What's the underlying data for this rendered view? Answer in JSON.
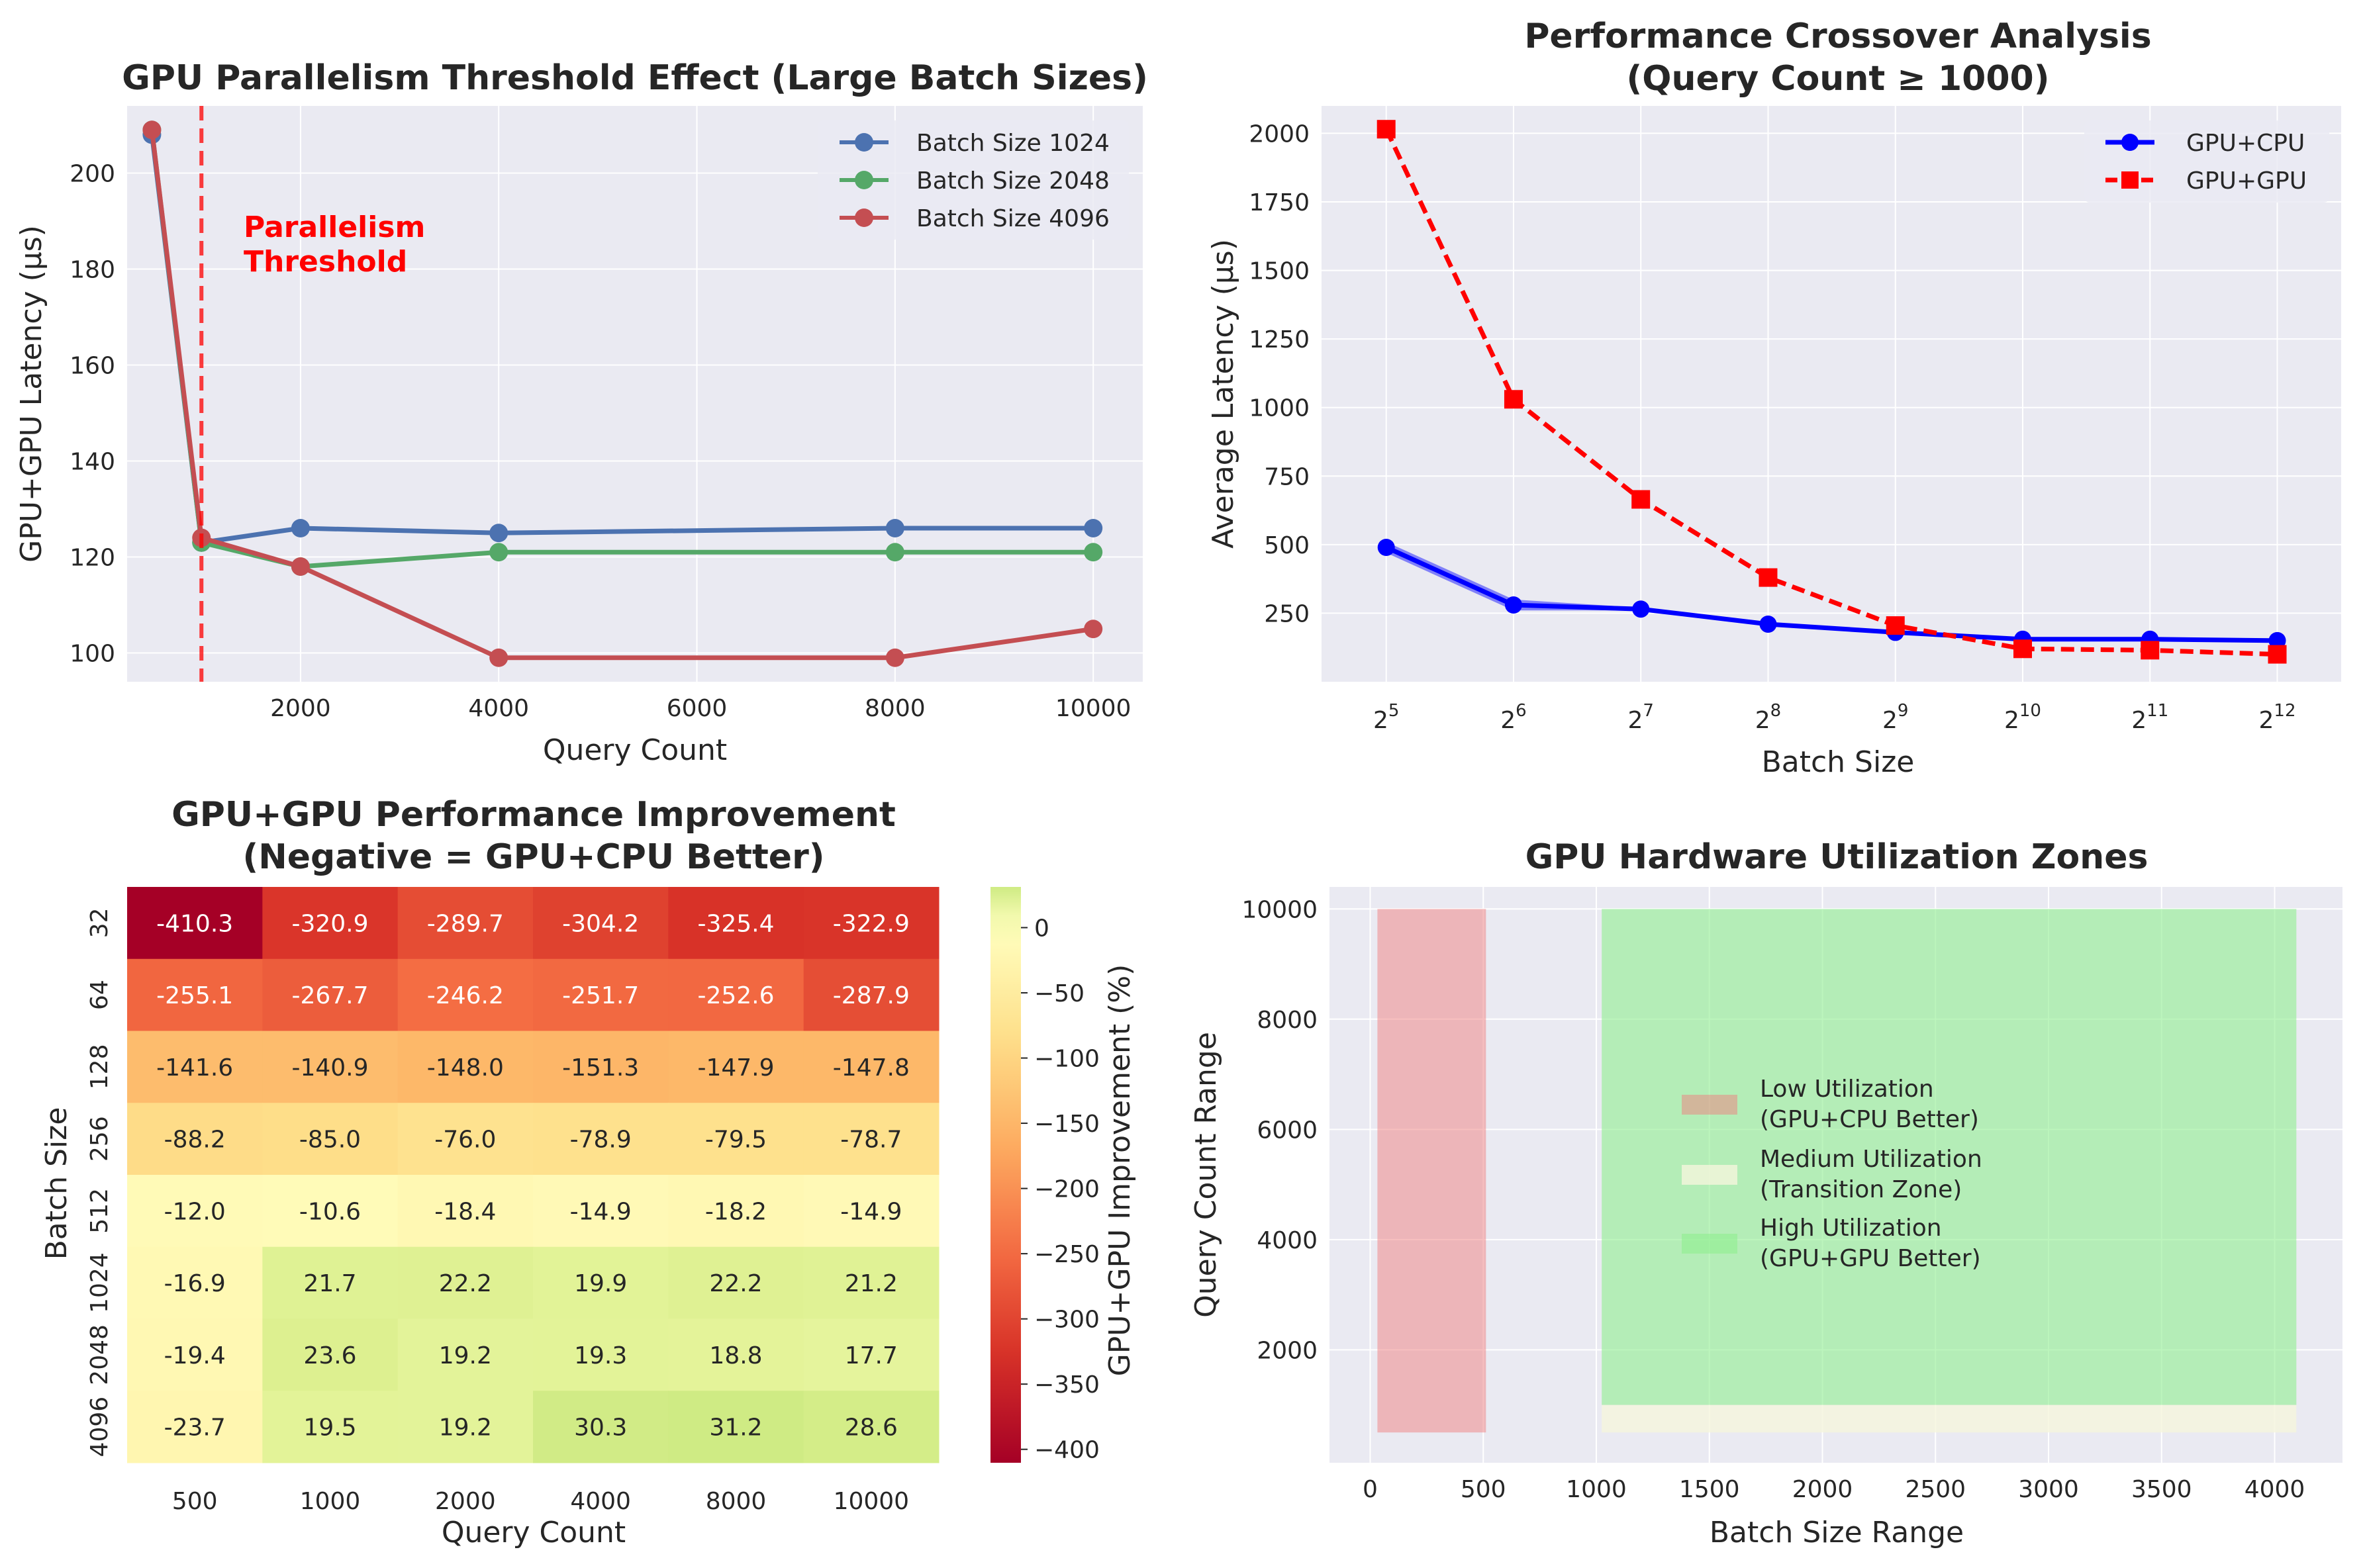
{
  "colors": {
    "panel_bg": "#EAEAF2",
    "grid": "#ffffff",
    "series_1024": "#4C72B0",
    "series_2048": "#55A868",
    "series_4096": "#C44E52",
    "gpu_cpu": "#0000FF",
    "gpu_gpu": "#FF0000",
    "zone_low": "#F08080",
    "zone_medium": "#F5F5DC",
    "zone_high": "#90EE90"
  },
  "chart_data": [
    {
      "type": "line",
      "title": "GPU Parallelism Threshold Effect (Large Batch Sizes)",
      "xlabel": "Query Count",
      "ylabel": "GPU+GPU Latency (μs)",
      "xlim": [
        250,
        10500
      ],
      "ylim": [
        94,
        214
      ],
      "xticks": [
        2000,
        4000,
        6000,
        8000,
        10000
      ],
      "yticks": [
        100,
        120,
        140,
        160,
        180,
        200
      ],
      "legend": "upper right",
      "annotation": {
        "x": 1000,
        "text_lines": [
          "Parallelism",
          "Threshold"
        ]
      },
      "series": [
        {
          "name": "Batch Size 1024",
          "x": [
            500,
            1000,
            2000,
            4000,
            8000,
            10000
          ],
          "values": [
            208,
            123,
            126,
            125,
            126,
            126
          ]
        },
        {
          "name": "Batch Size 2048",
          "x": [
            500,
            1000,
            2000,
            4000,
            8000,
            10000
          ],
          "values": [
            209,
            123,
            118,
            121,
            121,
            121
          ]
        },
        {
          "name": "Batch Size 4096",
          "x": [
            500,
            1000,
            2000,
            4000,
            8000,
            10000
          ],
          "values": [
            209,
            124,
            118,
            99,
            99,
            105
          ]
        }
      ]
    },
    {
      "type": "line",
      "title": "Performance Crossover Analysis",
      "subtitle": "(Query Count ≥ 1000)",
      "xlabel": "Batch Size",
      "ylabel": "Average Latency (μs)",
      "xscale": "log2",
      "xlim": [
        22.5,
        5800
      ],
      "ylim": [
        0,
        2100
      ],
      "xticks": [
        32,
        64,
        128,
        256,
        512,
        1024,
        2048,
        4096
      ],
      "xtick_exponents": [
        "5",
        "6",
        "7",
        "8",
        "9",
        "10",
        "11",
        "12"
      ],
      "ytick_base": "2",
      "yticks": [
        250,
        500,
        750,
        1000,
        1250,
        1500,
        1750,
        2000
      ],
      "legend": "upper right",
      "series": [
        {
          "name": "GPU+CPU",
          "x": [
            32,
            64,
            128,
            256,
            512,
            1024,
            2048,
            4096
          ],
          "values": [
            490,
            280,
            265,
            210,
            180,
            155,
            155,
            150
          ],
          "band_low": [
            470,
            260,
            260,
            205,
            175,
            150,
            150,
            145
          ],
          "band_high": [
            510,
            300,
            270,
            215,
            185,
            160,
            160,
            155
          ]
        },
        {
          "name": "GPU+GPU",
          "x": [
            32,
            64,
            128,
            256,
            512,
            1024,
            2048,
            4096
          ],
          "values": [
            2015,
            1030,
            665,
            380,
            205,
            120,
            115,
            100
          ]
        }
      ]
    },
    {
      "type": "heatmap",
      "title": "GPU+GPU Performance Improvement",
      "subtitle": "(Negative = GPU+CPU Better)",
      "xlabel": "Query Count",
      "ylabel": "Batch Size",
      "colorbar_label": "GPU+GPU Improvement (%)",
      "colormap": "RdYlGn",
      "vmin": -410.3,
      "vmax": 31.2,
      "colorbar_ticks": [
        0,
        -50,
        -100,
        -150,
        -200,
        -250,
        -300,
        -350,
        -400
      ],
      "colorbar_tick_labels": [
        "0",
        "−50",
        "−100",
        "−150",
        "−200",
        "−250",
        "−300",
        "−350",
        "−400"
      ],
      "x": [
        "500",
        "1000",
        "2000",
        "4000",
        "8000",
        "10000"
      ],
      "y": [
        "32",
        "64",
        "128",
        "256",
        "512",
        "1024",
        "2048",
        "4096"
      ],
      "values": [
        [
          -410.3,
          -320.9,
          -289.7,
          -304.2,
          -325.4,
          -322.9
        ],
        [
          -255.1,
          -267.7,
          -246.2,
          -251.7,
          -252.6,
          -287.9
        ],
        [
          -141.6,
          -140.9,
          -148.0,
          -151.3,
          -147.9,
          -147.8
        ],
        [
          -88.2,
          -85.0,
          -76.0,
          -78.9,
          -79.5,
          -78.7
        ],
        [
          -12.0,
          -10.6,
          -18.4,
          -14.9,
          -18.2,
          -14.9
        ],
        [
          -16.9,
          21.7,
          22.2,
          19.9,
          22.2,
          21.2
        ],
        [
          -19.4,
          23.6,
          19.2,
          19.3,
          18.8,
          17.7
        ],
        [
          -23.7,
          19.5,
          19.2,
          30.3,
          31.2,
          28.6
        ]
      ]
    },
    {
      "type": "area",
      "title": "GPU Hardware Utilization Zones",
      "xlabel": "Batch Size Range",
      "ylabel": "Query Count Range",
      "xlim": [
        -180,
        4300
      ],
      "ylim": [
        -50,
        10400
      ],
      "xticks": [
        0,
        500,
        1000,
        1500,
        2000,
        2500,
        3000,
        3500,
        4000
      ],
      "yticks": [
        2000,
        4000,
        6000,
        8000,
        10000
      ],
      "legend": "center",
      "zones": [
        {
          "name": "Low Utilization",
          "note": "(GPU+CPU Better)",
          "x": [
            32,
            512
          ],
          "y": [
            500,
            10000
          ]
        },
        {
          "name": "Medium Utilization",
          "note": "(Transition Zone)",
          "x": [
            1024,
            4096
          ],
          "y": [
            500,
            1000
          ]
        },
        {
          "name": "High Utilization",
          "note": "(GPU+GPU Better)",
          "x": [
            1024,
            4096
          ],
          "y": [
            1000,
            10000
          ]
        }
      ]
    }
  ]
}
